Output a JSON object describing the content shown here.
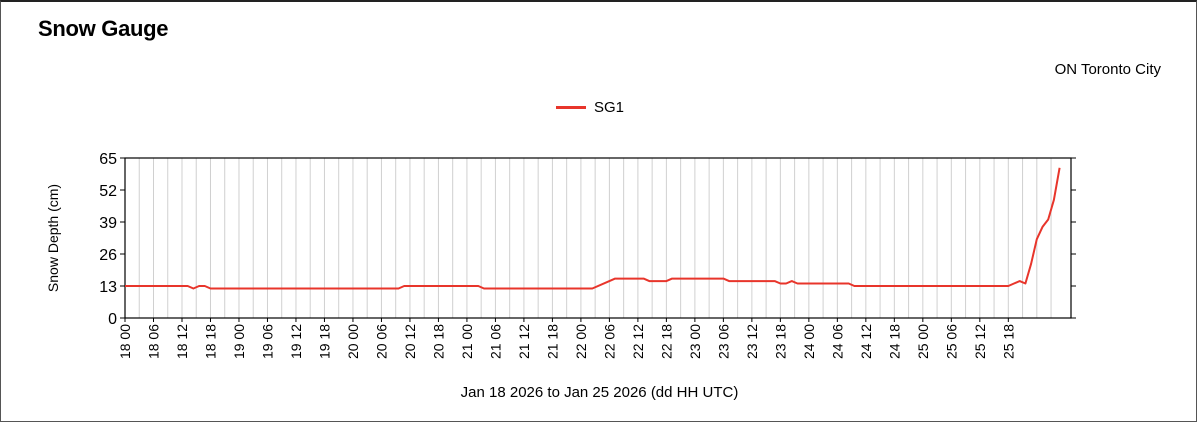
{
  "chart_data": {
    "type": "line",
    "title": "Snow Gauge",
    "subtitle": "ON Toronto City",
    "xlabel": "Jan 18 2026 to Jan 25 2026     (dd HH UTC)",
    "ylabel": "Snow Depth  (cm)",
    "ylim": [
      0,
      65
    ],
    "yticks": [
      0,
      13,
      26,
      39,
      52,
      65
    ],
    "xlim": [
      0,
      160
    ],
    "xtick_labels": [
      "18 00",
      "18 06",
      "18 12",
      "18 18",
      "19 00",
      "19 06",
      "19 12",
      "19 18",
      "20 00",
      "20 06",
      "20 12",
      "20 18",
      "21 00",
      "21 06",
      "21 12",
      "21 18",
      "22 00",
      "22 06",
      "22 12",
      "22 18",
      "23 00",
      "23 06",
      "23 12",
      "23 18",
      "24 00",
      "24 06",
      "24 12",
      "24 18",
      "25 00",
      "25 06",
      "25 12",
      "25 18"
    ],
    "grid": true,
    "legend_position": "top-center",
    "series": [
      {
        "name": "SG1",
        "color": "#e8352b",
        "points": [
          [
            0,
            13
          ],
          [
            11,
            13
          ],
          [
            12,
            12
          ],
          [
            13,
            13
          ],
          [
            14,
            13
          ],
          [
            15,
            12
          ],
          [
            48,
            12
          ],
          [
            49,
            13
          ],
          [
            62,
            13
          ],
          [
            63,
            12
          ],
          [
            82,
            12
          ],
          [
            85,
            15
          ],
          [
            86,
            16
          ],
          [
            91,
            16
          ],
          [
            92,
            15
          ],
          [
            95,
            15
          ],
          [
            96,
            16
          ],
          [
            105,
            16
          ],
          [
            106,
            15
          ],
          [
            114,
            15
          ],
          [
            115,
            14
          ],
          [
            116,
            14
          ],
          [
            117,
            15
          ],
          [
            118,
            14
          ],
          [
            127,
            14
          ],
          [
            128,
            13
          ],
          [
            155,
            13
          ],
          [
            156,
            14
          ],
          [
            157,
            15
          ],
          [
            158,
            14
          ],
          [
            159,
            22
          ],
          [
            160,
            32
          ],
          [
            161,
            37
          ],
          [
            162,
            40
          ],
          [
            163,
            48
          ],
          [
            164,
            61
          ]
        ]
      }
    ]
  }
}
